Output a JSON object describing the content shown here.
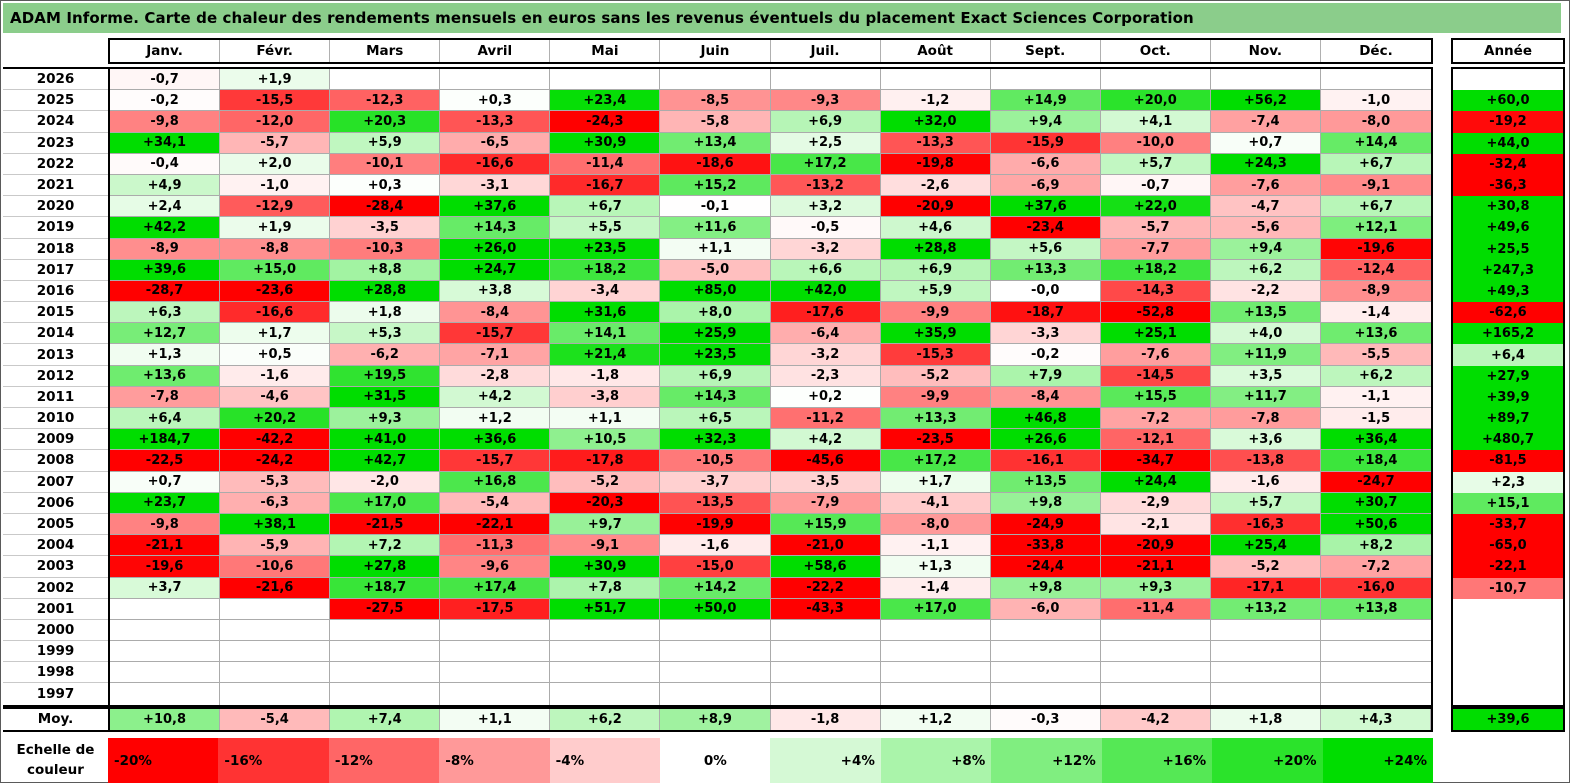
{
  "ui": {
    "title": "ADAM Informe. Carte de chaleur des rendements mensuels en euros sans les revenus éventuels du placement Exact Sciences Corporation",
    "annee_label": "Année",
    "moy_label": "Moy.",
    "scale_label": "Echelle de couleur"
  },
  "colors": {
    "title_bg": "#8BCD8B",
    "negative_end": "#FF0000",
    "positive_end": "#00DD00",
    "zero": "#FFFFFF",
    "grid_line": "#ABABAB"
  },
  "chart_data": {
    "type": "heatmap",
    "title": "ADAM Informe. Carte de chaleur des rendements mensuels en euros sans les revenus éventuels du placement Exact Sciences Corporation",
    "unit": "percent",
    "value_format": "signed, one decimal, comma as decimal separator",
    "col_labels": [
      "Janv.",
      "Févr.",
      "Mars",
      "Avril",
      "Mai",
      "Juin",
      "Juil.",
      "Août",
      "Sept.",
      "Oct.",
      "Nov.",
      "Déc.",
      "Année"
    ],
    "row_labels": [
      "2026",
      "2025",
      "2024",
      "2023",
      "2022",
      "2021",
      "2020",
      "2019",
      "2018",
      "2017",
      "2016",
      "2015",
      "2014",
      "2013",
      "2012",
      "2011",
      "2010",
      "2009",
      "2008",
      "2007",
      "2006",
      "2005",
      "2004",
      "2003",
      "2002",
      "2001",
      "2000",
      "1999",
      "1998",
      "1997",
      "Moy."
    ],
    "color_scale": {
      "domain_min": -20,
      "domain_max": 24,
      "min_color": "#FF0000",
      "mid_color": "#FFFFFF",
      "max_color": "#00DD00",
      "legend_values": [
        -20,
        -16,
        -12,
        -8,
        -4,
        0,
        4,
        8,
        12,
        16,
        20,
        24
      ]
    },
    "matrix": [
      [
        -0.7,
        1.9,
        null,
        null,
        null,
        null,
        null,
        null,
        null,
        null,
        null,
        null,
        null
      ],
      [
        -0.2,
        -15.5,
        -12.3,
        0.3,
        23.4,
        -8.5,
        -9.3,
        -1.2,
        14.9,
        20.0,
        56.2,
        -1.0,
        60.0
      ],
      [
        -9.8,
        -12.0,
        20.3,
        -13.3,
        -24.3,
        -5.8,
        6.9,
        32.0,
        9.4,
        4.1,
        -7.4,
        -8.0,
        -19.2
      ],
      [
        34.1,
        -5.7,
        5.9,
        -6.5,
        30.9,
        13.4,
        2.5,
        -13.3,
        -15.9,
        -10.0,
        0.7,
        14.4,
        44.0
      ],
      [
        -0.4,
        2.0,
        -10.1,
        -16.6,
        -11.4,
        -18.6,
        17.2,
        -19.8,
        -6.6,
        5.7,
        24.3,
        6.7,
        -32.4
      ],
      [
        4.9,
        -1.0,
        0.3,
        -3.1,
        -16.7,
        15.2,
        -13.2,
        -2.6,
        -6.9,
        -0.7,
        -7.6,
        -9.1,
        -36.3
      ],
      [
        2.4,
        -12.9,
        -28.4,
        37.6,
        6.7,
        -0.1,
        3.2,
        -20.9,
        37.6,
        22.0,
        -4.7,
        6.7,
        30.8
      ],
      [
        42.2,
        1.9,
        -3.5,
        14.3,
        5.5,
        11.6,
        -0.5,
        4.6,
        -23.4,
        -5.7,
        -5.6,
        12.1,
        49.6
      ],
      [
        -8.9,
        -8.8,
        -10.3,
        26.0,
        23.5,
        1.1,
        -3.2,
        28.8,
        5.6,
        -7.7,
        9.4,
        -19.6,
        25.5
      ],
      [
        39.6,
        15.0,
        8.8,
        24.7,
        18.2,
        -5.0,
        6.6,
        6.9,
        13.3,
        18.2,
        6.2,
        -12.4,
        247.3
      ],
      [
        -28.7,
        -23.6,
        28.8,
        3.8,
        -3.4,
        85.0,
        42.0,
        5.9,
        -0.0,
        -14.3,
        -2.2,
        -8.9,
        49.3
      ],
      [
        6.3,
        -16.6,
        1.8,
        -8.4,
        31.6,
        8.0,
        -17.6,
        -9.9,
        -18.7,
        -52.8,
        13.5,
        -1.4,
        -62.6
      ],
      [
        12.7,
        1.7,
        5.3,
        -15.7,
        14.1,
        25.9,
        -6.4,
        35.9,
        -3.3,
        25.1,
        4.0,
        13.6,
        165.2
      ],
      [
        1.3,
        0.5,
        -6.2,
        -7.1,
        21.4,
        23.5,
        -3.2,
        -15.3,
        -0.2,
        -7.6,
        11.9,
        -5.5,
        6.4
      ],
      [
        13.6,
        -1.6,
        19.5,
        -2.8,
        -1.8,
        6.9,
        -2.3,
        -5.2,
        7.9,
        -14.5,
        3.5,
        6.2,
        27.9
      ],
      [
        -7.8,
        -4.6,
        31.5,
        4.2,
        -3.8,
        14.3,
        0.2,
        -9.9,
        -8.4,
        15.5,
        11.7,
        -1.1,
        39.9
      ],
      [
        6.4,
        20.2,
        9.3,
        1.2,
        1.1,
        6.5,
        -11.2,
        13.3,
        46.8,
        -7.2,
        -7.8,
        -1.5,
        89.7
      ],
      [
        184.7,
        -42.2,
        41.0,
        36.6,
        10.5,
        32.3,
        4.2,
        -23.5,
        26.6,
        -12.1,
        3.6,
        36.4,
        480.7
      ],
      [
        -22.5,
        -24.2,
        42.7,
        -15.7,
        -17.8,
        -10.5,
        -45.6,
        17.2,
        -16.1,
        -34.7,
        -13.8,
        18.4,
        -81.5
      ],
      [
        0.7,
        -5.3,
        -2.0,
        16.8,
        -5.2,
        -3.7,
        -3.5,
        1.7,
        13.5,
        24.4,
        -1.6,
        -24.7,
        2.3
      ],
      [
        23.7,
        -6.3,
        17.0,
        -5.4,
        -20.3,
        -13.5,
        -7.9,
        -4.1,
        9.8,
        -2.9,
        5.7,
        30.7,
        15.1
      ],
      [
        -9.8,
        38.1,
        -21.5,
        -22.1,
        9.7,
        -19.9,
        15.9,
        -8.0,
        -24.9,
        -2.1,
        -16.3,
        50.6,
        -33.7
      ],
      [
        -21.1,
        -5.9,
        7.2,
        -11.3,
        -9.1,
        -1.6,
        -21.0,
        -1.1,
        -33.8,
        -20.9,
        25.4,
        8.2,
        -65.0
      ],
      [
        -19.6,
        -10.6,
        27.8,
        -9.6,
        30.9,
        -15.0,
        58.6,
        1.3,
        -24.4,
        -21.1,
        -5.2,
        -7.2,
        -22.1
      ],
      [
        3.7,
        -21.6,
        18.7,
        17.4,
        7.8,
        14.2,
        -22.2,
        -1.4,
        9.8,
        9.3,
        -17.1,
        -16.0,
        -10.7
      ],
      [
        null,
        null,
        -27.5,
        -17.5,
        51.7,
        50.0,
        -43.3,
        17.0,
        -6.0,
        -11.4,
        13.2,
        13.8,
        null
      ],
      [
        null,
        null,
        null,
        null,
        null,
        null,
        null,
        null,
        null,
        null,
        null,
        null,
        null
      ],
      [
        null,
        null,
        null,
        null,
        null,
        null,
        null,
        null,
        null,
        null,
        null,
        null,
        null
      ],
      [
        null,
        null,
        null,
        null,
        null,
        null,
        null,
        null,
        null,
        null,
        null,
        null,
        null
      ],
      [
        null,
        null,
        null,
        null,
        null,
        null,
        null,
        null,
        null,
        null,
        null,
        null,
        null
      ],
      [
        10.8,
        -5.4,
        7.4,
        1.1,
        6.2,
        8.9,
        -1.8,
        1.2,
        -0.3,
        -4.2,
        1.8,
        4.3,
        39.6
      ]
    ]
  }
}
